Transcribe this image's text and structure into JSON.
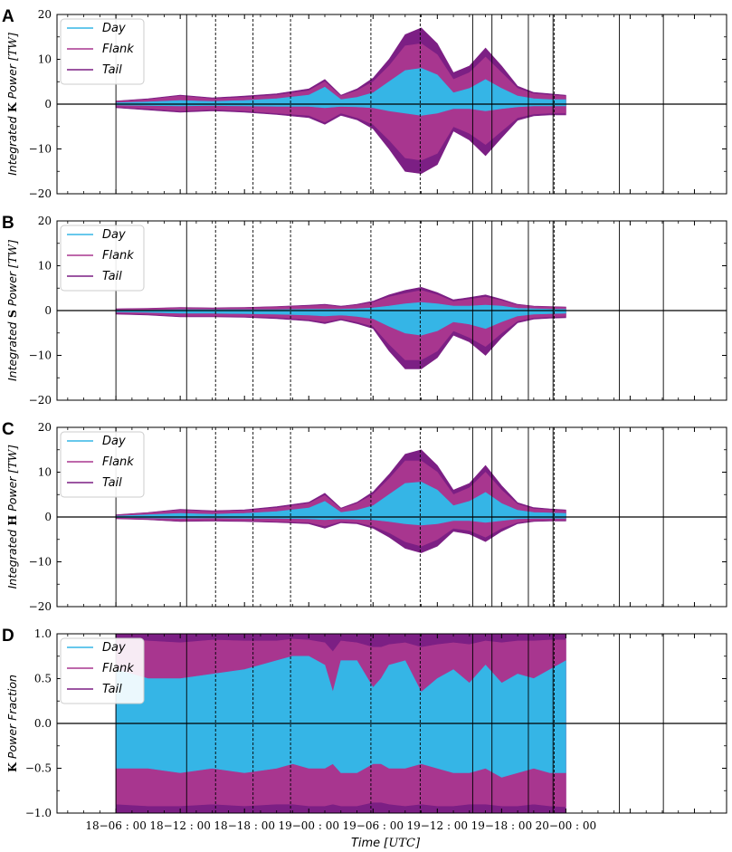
{
  "figure": {
    "xlabel": "Time [UTC]",
    "xticks": [
      "18−06 : 00",
      "18−12 : 00",
      "18−18 : 00",
      "19−00 : 00",
      "19−06 : 00",
      "19−12 : 00",
      "19−18 : 00",
      "20−00 : 00"
    ],
    "xlim_hours": [
      -6,
      50
    ],
    "solid_event_lines_hours": [
      6.0,
      12.6,
      39.3,
      41.1,
      44.5,
      46.8,
      53.0,
      57.1
    ],
    "dashed_event_lines_hours": [
      15.3,
      18.8,
      22.3,
      29.8,
      34.4,
      46.9
    ],
    "colors": {
      "day": "#35b5e6",
      "flank": "#a8368f",
      "tail": "#7c1f84",
      "vline": "#000000"
    }
  },
  "chart_data": [
    {
      "panel": "A",
      "type": "area",
      "ylabel_prefix": "Integrated",
      "ylabel_symbol": "K",
      "ylabel_mid": "Power",
      "ylabel_units": "[TW]",
      "ylim": [
        -20,
        20
      ],
      "yticks": [
        "20",
        "10",
        "0",
        "−10",
        "−20"
      ],
      "legend": [
        "Day",
        "Flank",
        "Tail"
      ],
      "legend_placement": "upper-left",
      "series": [
        {
          "name": "Day",
          "x": [
            0,
            4,
            8,
            12,
            16,
            20,
            24,
            26,
            28,
            30,
            32,
            34,
            36,
            38,
            40,
            42,
            44,
            46,
            48,
            50,
            52,
            54,
            56
          ],
          "pos": [
            0.3,
            0.5,
            0.8,
            0.6,
            0.8,
            1.2,
            2.0,
            3.8,
            1.0,
            1.5,
            2.5,
            5.0,
            7.5,
            8.0,
            6.5,
            2.5,
            3.5,
            5.5,
            3.5,
            1.8,
            1.2,
            1.0,
            1.0
          ],
          "neg": [
            -0.2,
            -0.3,
            -0.4,
            -0.3,
            -0.4,
            -0.5,
            -0.5,
            -0.8,
            -0.5,
            -0.6,
            -0.8,
            -1.5,
            -2.0,
            -2.5,
            -2.0,
            -1.0,
            -1.0,
            -1.5,
            -1.0,
            -0.6,
            -0.4,
            -0.4,
            -0.4
          ]
        },
        {
          "name": "Flank",
          "x": [
            0,
            4,
            8,
            12,
            16,
            20,
            24,
            26,
            28,
            30,
            32,
            34,
            36,
            38,
            40,
            42,
            44,
            46,
            48,
            50,
            52,
            54,
            56
          ],
          "pos": [
            0.6,
            1.0,
            1.8,
            1.2,
            1.5,
            2.0,
            3.0,
            5.0,
            1.8,
            3.0,
            5.0,
            8.5,
            13.0,
            13.5,
            11.0,
            5.5,
            7.0,
            10.5,
            7.0,
            3.5,
            2.3,
            2.0,
            1.8
          ],
          "neg": [
            -0.6,
            -1.0,
            -1.5,
            -1.2,
            -1.5,
            -2.0,
            -2.5,
            -4.0,
            -2.0,
            -3.0,
            -4.5,
            -8.0,
            -12.0,
            -12.5,
            -11.0,
            -5.0,
            -6.5,
            -9.0,
            -6.0,
            -3.0,
            -2.2,
            -2.0,
            -2.0
          ]
        },
        {
          "name": "Tail",
          "x": [
            0,
            4,
            8,
            12,
            16,
            20,
            24,
            26,
            28,
            30,
            32,
            34,
            36,
            38,
            40,
            42,
            44,
            46,
            48,
            50,
            52,
            54,
            56
          ],
          "pos": [
            0.7,
            1.2,
            2.0,
            1.4,
            1.8,
            2.3,
            3.4,
            5.5,
            2.0,
            3.4,
            5.8,
            10.0,
            15.5,
            17.0,
            13.5,
            7.0,
            8.5,
            12.5,
            8.5,
            4.0,
            2.6,
            2.3,
            2.0
          ],
          "neg": [
            -0.8,
            -1.3,
            -1.8,
            -1.5,
            -1.8,
            -2.3,
            -3.0,
            -4.5,
            -2.5,
            -3.5,
            -5.5,
            -10.0,
            -15.0,
            -15.5,
            -13.5,
            -6.0,
            -8.0,
            -11.5,
            -7.5,
            -3.6,
            -2.6,
            -2.4,
            -2.4
          ]
        }
      ]
    },
    {
      "panel": "B",
      "type": "area",
      "ylabel_prefix": "Integrated",
      "ylabel_symbol": "S",
      "ylabel_mid": "Power",
      "ylabel_units": "[TW]",
      "ylim": [
        -20,
        20
      ],
      "yticks": [
        "20",
        "10",
        "0",
        "−10",
        "−20"
      ],
      "legend": [
        "Day",
        "Flank",
        "Tail"
      ],
      "legend_placement": "upper-left",
      "series": [
        {
          "name": "Day",
          "x": [
            0,
            4,
            8,
            12,
            16,
            20,
            24,
            26,
            28,
            30,
            32,
            34,
            36,
            38,
            40,
            42,
            44,
            46,
            48,
            50,
            52,
            54,
            56
          ],
          "pos": [
            0.1,
            0.1,
            0.2,
            0.2,
            0.2,
            0.2,
            0.3,
            0.3,
            0.3,
            0.4,
            0.6,
            1.0,
            1.5,
            1.8,
            1.5,
            1.0,
            1.0,
            1.2,
            1.0,
            0.5,
            0.4,
            0.3,
            0.3
          ],
          "neg": [
            -0.3,
            -0.4,
            -0.6,
            -0.6,
            -0.7,
            -0.8,
            -1.0,
            -1.2,
            -1.0,
            -1.3,
            -1.8,
            -3.5,
            -5.0,
            -5.5,
            -4.5,
            -2.5,
            -3.0,
            -4.0,
            -2.5,
            -1.2,
            -0.8,
            -0.7,
            -0.6
          ]
        },
        {
          "name": "Flank",
          "x": [
            0,
            4,
            8,
            12,
            16,
            20,
            24,
            26,
            28,
            30,
            32,
            34,
            36,
            38,
            40,
            42,
            44,
            46,
            48,
            50,
            52,
            54,
            56
          ],
          "pos": [
            0.3,
            0.4,
            0.6,
            0.5,
            0.6,
            0.8,
            1.0,
            1.2,
            0.8,
            1.2,
            1.8,
            3.0,
            3.8,
            4.5,
            3.5,
            2.0,
            2.5,
            3.0,
            2.2,
            1.2,
            0.9,
            0.8,
            0.7
          ],
          "neg": [
            -0.6,
            -0.8,
            -1.2,
            -1.2,
            -1.3,
            -1.5,
            -2.0,
            -2.5,
            -1.8,
            -2.5,
            -3.5,
            -7.5,
            -11.0,
            -11.0,
            -9.0,
            -4.5,
            -6.0,
            -8.0,
            -5.0,
            -2.3,
            -1.6,
            -1.4,
            -1.3
          ]
        },
        {
          "name": "Tail",
          "x": [
            0,
            4,
            8,
            12,
            16,
            20,
            24,
            26,
            28,
            30,
            32,
            34,
            36,
            38,
            40,
            42,
            44,
            46,
            48,
            50,
            52,
            54,
            56
          ],
          "pos": [
            0.4,
            0.5,
            0.7,
            0.6,
            0.7,
            0.9,
            1.2,
            1.4,
            1.0,
            1.4,
            2.1,
            3.5,
            4.5,
            5.2,
            4.0,
            2.4,
            2.9,
            3.5,
            2.5,
            1.4,
            1.0,
            0.9,
            0.8
          ],
          "neg": [
            -0.8,
            -1.0,
            -1.4,
            -1.4,
            -1.5,
            -1.8,
            -2.3,
            -2.9,
            -2.1,
            -2.9,
            -4.0,
            -9.0,
            -13.0,
            -13.0,
            -10.5,
            -5.5,
            -7.0,
            -10.0,
            -6.0,
            -2.7,
            -1.9,
            -1.7,
            -1.6
          ]
        }
      ]
    },
    {
      "panel": "C",
      "type": "area",
      "ylabel_prefix": "Integrated",
      "ylabel_symbol": "H",
      "ylabel_mid": "Power",
      "ylabel_units": "[TW]",
      "ylim": [
        -20,
        20
      ],
      "yticks": [
        "20",
        "10",
        "0",
        "−10",
        "−20"
      ],
      "legend": [
        "Day",
        "Flank",
        "Tail"
      ],
      "legend_placement": "upper-left",
      "series": [
        {
          "name": "Day",
          "x": [
            0,
            4,
            8,
            12,
            16,
            20,
            24,
            26,
            28,
            30,
            32,
            34,
            36,
            38,
            40,
            42,
            44,
            46,
            48,
            50,
            52,
            54,
            56
          ],
          "pos": [
            0.2,
            0.5,
            0.8,
            0.6,
            0.8,
            1.2,
            2.0,
            3.5,
            1.0,
            1.5,
            2.5,
            5.0,
            7.5,
            7.8,
            6.0,
            2.5,
            3.5,
            5.5,
            3.0,
            1.5,
            1.0,
            0.9,
            0.8
          ],
          "neg": [
            -0.1,
            -0.2,
            -0.3,
            -0.2,
            -0.3,
            -0.3,
            -0.4,
            -0.6,
            -0.4,
            -0.5,
            -0.6,
            -1.0,
            -1.5,
            -1.8,
            -1.5,
            -0.8,
            -0.8,
            -1.2,
            -0.8,
            -0.4,
            -0.3,
            -0.3,
            -0.3
          ]
        },
        {
          "name": "Flank",
          "x": [
            0,
            4,
            8,
            12,
            16,
            20,
            24,
            26,
            28,
            30,
            32,
            34,
            36,
            38,
            40,
            42,
            44,
            46,
            48,
            50,
            52,
            54,
            56
          ],
          "pos": [
            0.4,
            0.9,
            1.5,
            1.2,
            1.4,
            2.0,
            3.0,
            4.8,
            1.8,
            3.0,
            5.0,
            8.5,
            12.5,
            12.5,
            10.0,
            5.0,
            6.5,
            10.0,
            6.0,
            2.8,
            1.8,
            1.6,
            1.4
          ],
          "neg": [
            -0.3,
            -0.5,
            -0.8,
            -0.7,
            -0.8,
            -1.0,
            -1.2,
            -2.0,
            -1.0,
            -1.2,
            -2.0,
            -3.5,
            -5.5,
            -6.5,
            -5.0,
            -2.5,
            -3.0,
            -4.5,
            -2.5,
            -1.2,
            -0.8,
            -0.7,
            -0.7
          ]
        },
        {
          "name": "Tail",
          "x": [
            0,
            4,
            8,
            12,
            16,
            20,
            24,
            26,
            28,
            30,
            32,
            34,
            36,
            38,
            40,
            42,
            44,
            46,
            48,
            50,
            52,
            54,
            56
          ],
          "pos": [
            0.5,
            1.0,
            1.7,
            1.4,
            1.6,
            2.3,
            3.3,
            5.3,
            2.0,
            3.3,
            5.6,
            9.5,
            14.0,
            15.0,
            11.5,
            6.0,
            7.5,
            11.5,
            7.0,
            3.2,
            2.1,
            1.8,
            1.6
          ],
          "neg": [
            -0.4,
            -0.6,
            -1.0,
            -0.9,
            -1.0,
            -1.2,
            -1.5,
            -2.5,
            -1.3,
            -1.5,
            -2.5,
            -4.5,
            -7.0,
            -8.0,
            -6.5,
            -3.2,
            -3.8,
            -5.5,
            -3.2,
            -1.5,
            -1.0,
            -0.9,
            -0.9
          ]
        }
      ]
    },
    {
      "panel": "D",
      "type": "area",
      "ylabel_prefix": "",
      "ylabel_symbol": "K",
      "ylabel_mid": "Power Fraction",
      "ylabel_units": "",
      "ylim": [
        -1.0,
        1.0
      ],
      "yticks": [
        "1.0",
        "0.5",
        "0.0",
        "−0.5",
        "−1.0"
      ],
      "legend": [
        "Day",
        "Flank",
        "Tail"
      ],
      "legend_placement": "upper-left",
      "series": [
        {
          "name": "Day",
          "x": [
            0,
            4,
            8,
            12,
            16,
            20,
            22,
            24,
            26,
            27,
            28,
            30,
            32,
            33,
            34,
            36,
            38,
            40,
            42,
            44,
            46,
            48,
            50,
            52,
            54,
            56
          ],
          "pos": [
            0.6,
            0.5,
            0.5,
            0.55,
            0.6,
            0.7,
            0.75,
            0.75,
            0.65,
            0.35,
            0.7,
            0.7,
            0.4,
            0.5,
            0.65,
            0.7,
            0.35,
            0.5,
            0.6,
            0.45,
            0.65,
            0.45,
            0.55,
            0.5,
            0.6,
            0.7
          ],
          "neg": [
            -0.5,
            -0.5,
            -0.55,
            -0.5,
            -0.55,
            -0.5,
            -0.45,
            -0.5,
            -0.5,
            -0.45,
            -0.55,
            -0.55,
            -0.45,
            -0.45,
            -0.5,
            -0.5,
            -0.45,
            -0.5,
            -0.55,
            -0.55,
            -0.5,
            -0.6,
            -0.55,
            -0.5,
            -0.55,
            -0.55
          ]
        },
        {
          "name": "Flank",
          "x": [
            0,
            4,
            8,
            12,
            16,
            20,
            22,
            24,
            26,
            27,
            28,
            30,
            32,
            33,
            34,
            36,
            38,
            40,
            42,
            44,
            46,
            48,
            50,
            52,
            54,
            56
          ],
          "pos": [
            0.95,
            0.92,
            0.9,
            0.93,
            0.92,
            0.92,
            0.94,
            0.93,
            0.9,
            0.8,
            0.92,
            0.9,
            0.85,
            0.85,
            0.88,
            0.9,
            0.85,
            0.88,
            0.9,
            0.88,
            0.92,
            0.9,
            0.92,
            0.92,
            0.93,
            0.93
          ],
          "neg": [
            -0.9,
            -0.92,
            -0.92,
            -0.9,
            -0.92,
            -0.9,
            -0.9,
            -0.92,
            -0.92,
            -0.9,
            -0.92,
            -0.92,
            -0.88,
            -0.88,
            -0.9,
            -0.92,
            -0.9,
            -0.92,
            -0.92,
            -0.9,
            -0.9,
            -0.92,
            -0.92,
            -0.9,
            -0.92,
            -0.93
          ]
        },
        {
          "name": "Tail",
          "x": [
            0,
            4,
            8,
            12,
            16,
            20,
            22,
            24,
            26,
            27,
            28,
            30,
            32,
            33,
            34,
            36,
            38,
            40,
            42,
            44,
            46,
            48,
            50,
            52,
            54,
            56
          ],
          "pos": [
            1.0,
            1.0,
            1.0,
            1.0,
            1.0,
            1.0,
            1.0,
            1.0,
            1.0,
            1.0,
            1.0,
            1.0,
            1.0,
            1.0,
            1.0,
            1.0,
            1.0,
            1.0,
            1.0,
            1.0,
            1.0,
            1.0,
            1.0,
            1.0,
            1.0,
            1.0
          ],
          "neg": [
            -1.0,
            -1.0,
            -1.0,
            -1.0,
            -1.0,
            -1.0,
            -1.0,
            -1.0,
            -1.0,
            -1.0,
            -1.0,
            -1.0,
            -1.0,
            -1.0,
            -1.0,
            -1.0,
            -1.0,
            -1.0,
            -1.0,
            -1.0,
            -1.0,
            -1.0,
            -1.0,
            -1.0,
            -1.0,
            -1.0
          ]
        }
      ]
    }
  ]
}
